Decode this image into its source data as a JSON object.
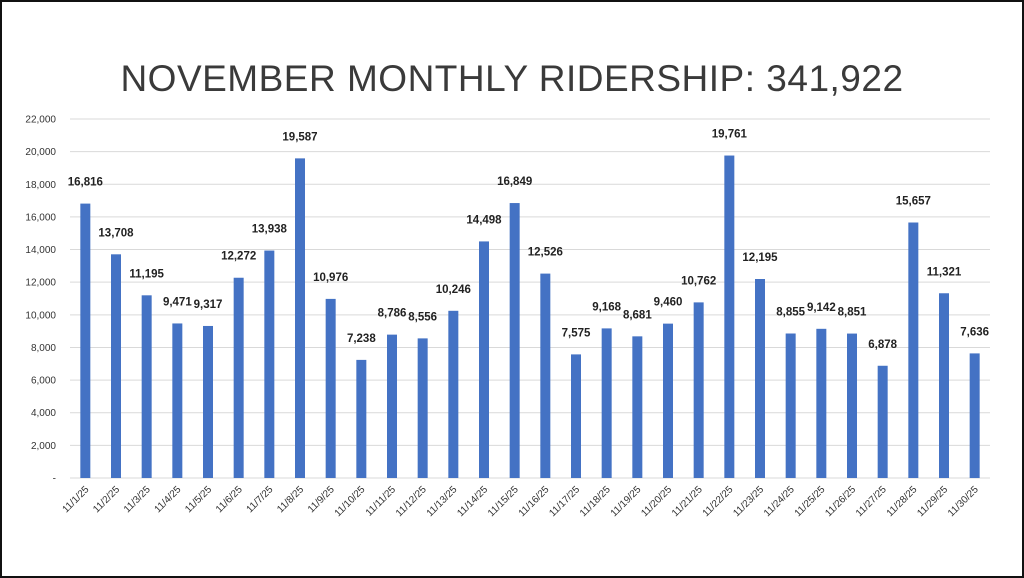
{
  "chart_data": {
    "type": "bar",
    "title": "NOVEMBER MONTHLY RIDERSHIP: 341,922",
    "xlabel": "",
    "ylabel": "",
    "categories": [
      "11/1/25",
      "11/2/25",
      "11/3/25",
      "11/4/25",
      "11/5/25",
      "11/6/25",
      "11/7/25",
      "11/8/25",
      "11/9/25",
      "11/10/25",
      "11/11/25",
      "11/12/25",
      "11/13/25",
      "11/14/25",
      "11/15/25",
      "11/16/25",
      "11/17/25",
      "11/18/25",
      "11/19/25",
      "11/20/25",
      "11/21/25",
      "11/22/25",
      "11/23/25",
      "11/24/25",
      "11/25/25",
      "11/26/25",
      "11/27/25",
      "11/28/25",
      "11/29/25",
      "11/30/25"
    ],
    "values": [
      16816,
      13708,
      11195,
      9471,
      9317,
      12272,
      13938,
      19587,
      10976,
      7238,
      8786,
      8556,
      10246,
      14498,
      16849,
      12526,
      7575,
      9168,
      8681,
      9460,
      10762,
      19761,
      12195,
      8855,
      9142,
      8851,
      6878,
      15657,
      11321,
      7636
    ],
    "value_labels": [
      "16,816",
      "13,708",
      "11,195",
      "9,471",
      "9,317",
      "12,272",
      "13,938",
      "19,587",
      "10,976",
      "7,238",
      "8,786",
      "8,556",
      "10,246",
      "14,498",
      "16,849",
      "12,526",
      "7,575",
      "9,168",
      "8,681",
      "9,460",
      "10,762",
      "19,761",
      "12,195",
      "8,855",
      "9,142",
      "8,851",
      "6,878",
      "15,657",
      "11,321",
      "7,636"
    ],
    "y_ticks": [
      0,
      2000,
      4000,
      6000,
      8000,
      10000,
      12000,
      14000,
      16000,
      18000,
      20000,
      22000
    ],
    "y_tick_labels": [
      "-",
      "2,000",
      "4,000",
      "6,000",
      "8,000",
      "10,000",
      "12,000",
      "14,000",
      "16,000",
      "18,000",
      "20,000",
      "22,000"
    ],
    "ylim": [
      0,
      22000
    ],
    "grid": true,
    "legend": "none",
    "bar_color": "#4472c4"
  }
}
